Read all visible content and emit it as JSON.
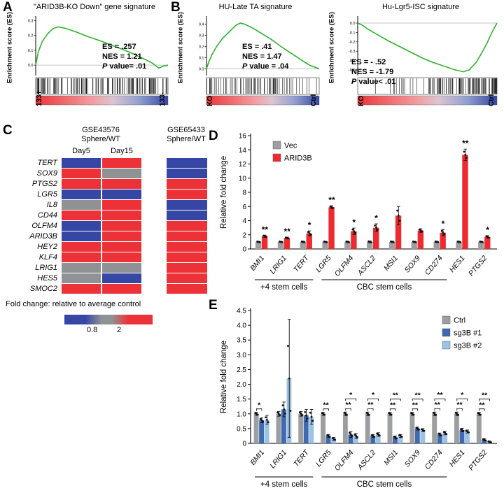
{
  "panels": {
    "a": "A",
    "b": "B",
    "c": "C",
    "d": "D",
    "e": "E"
  },
  "colors": {
    "green": "#2db32d",
    "heat_red": "#ed3237",
    "heat_blue": "#3646a4",
    "heat_gray": "#8f9194"
  },
  "chart_data": [
    {
      "id": "gsea_a",
      "type": "line",
      "title": "\"ARID3B-KO Down\" gene signature",
      "ylabel": "Enrichment score (ES)",
      "stats_lines": [
        "ES =  .257",
        "NES = 1.21"
      ],
      "p_italic": "P",
      "p_rest": " value= .01",
      "left_group": "133+",
      "right_group": "133-",
      "ylim": [
        -0.07,
        0.32
      ],
      "yticks": [
        0.3,
        0.2,
        0.1,
        0.0
      ],
      "curve": [
        [
          0,
          0
        ],
        [
          0.02,
          0.09
        ],
        [
          0.05,
          0.16
        ],
        [
          0.09,
          0.21
        ],
        [
          0.13,
          0.245
        ],
        [
          0.17,
          0.257
        ],
        [
          0.22,
          0.248
        ],
        [
          0.3,
          0.225
        ],
        [
          0.4,
          0.19
        ],
        [
          0.5,
          0.16
        ],
        [
          0.6,
          0.125
        ],
        [
          0.7,
          0.09
        ],
        [
          0.8,
          0.05
        ],
        [
          0.88,
          0.015
        ],
        [
          0.93,
          -0.02
        ],
        [
          0.97,
          -0.005
        ],
        [
          1,
          0
        ]
      ],
      "barcode": {
        "seed": 7,
        "n": 130,
        "bias": 1.05
      }
    },
    {
      "id": "gsea_b1",
      "type": "line",
      "title": "HU-Late TA  signature",
      "ylabel": "Enrichment score (ES)",
      "stats_lines": [
        "ES =  .41",
        "NES = 1.47"
      ],
      "p_italic": "P",
      "p_rest": " value = .04",
      "left_group": "KO",
      "right_group": "Ctrl",
      "ylim": [
        -0.06,
        0.46
      ],
      "yticks": [
        0.4,
        0.3,
        0.2,
        0.1,
        0.0
      ],
      "curve": [
        [
          0,
          0
        ],
        [
          0.02,
          0.06
        ],
        [
          0.05,
          0.13
        ],
        [
          0.09,
          0.2
        ],
        [
          0.14,
          0.27
        ],
        [
          0.2,
          0.33
        ],
        [
          0.26,
          0.39
        ],
        [
          0.3,
          0.41
        ],
        [
          0.34,
          0.4
        ],
        [
          0.42,
          0.36
        ],
        [
          0.5,
          0.31
        ],
        [
          0.58,
          0.26
        ],
        [
          0.66,
          0.2
        ],
        [
          0.75,
          0.14
        ],
        [
          0.84,
          0.08
        ],
        [
          0.92,
          0.03
        ],
        [
          1,
          0
        ]
      ],
      "barcode": {
        "seed": 11,
        "n": 72,
        "bias": 1.35
      }
    },
    {
      "id": "gsea_b2",
      "type": "line",
      "title": "Hu-Lgr5-ISC signature",
      "ylabel": "Enrichment score (ES)",
      "stats_lines": [
        "ES = - .52",
        "NES = -1.79"
      ],
      "p_italic": "P",
      "p_rest": " value< .01",
      "left_group": "KO",
      "right_group": "Ctrl",
      "ylim": [
        -0.56,
        0.06
      ],
      "yticks": [
        0.0,
        -0.1,
        -0.2,
        -0.3,
        -0.4,
        -0.5
      ],
      "curve": [
        [
          0,
          0
        ],
        [
          0.03,
          -0.02
        ],
        [
          0.08,
          -0.07
        ],
        [
          0.15,
          -0.13
        ],
        [
          0.22,
          -0.19
        ],
        [
          0.3,
          -0.25
        ],
        [
          0.38,
          -0.31
        ],
        [
          0.46,
          -0.37
        ],
        [
          0.54,
          -0.42
        ],
        [
          0.62,
          -0.46
        ],
        [
          0.7,
          -0.5
        ],
        [
          0.76,
          -0.52
        ],
        [
          0.8,
          -0.5
        ],
        [
          0.85,
          -0.42
        ],
        [
          0.89,
          -0.32
        ],
        [
          0.93,
          -0.21
        ],
        [
          0.96,
          -0.11
        ],
        [
          1,
          0
        ]
      ],
      "barcode": {
        "seed": 5,
        "n": 95,
        "bias": 0.5
      }
    },
    {
      "id": "heatmap_c",
      "type": "heatmap",
      "header_left": [
        "GSE43576",
        "Sphere/WT"
      ],
      "header_right": [
        "GSE65433",
        "Sphere/WT"
      ],
      "col_labels": [
        "Day5",
        "Day15"
      ],
      "genes": [
        "TERT",
        "SOX9",
        "PTGS2",
        "LGR5",
        "IL8",
        "CD44",
        "OLFM4",
        "ARID3B",
        "HEY2",
        "KLF4",
        "LRIG1",
        "HES5",
        "SMOC2"
      ],
      "cells": [
        [
          "b",
          "r",
          "b"
        ],
        [
          "r",
          "g",
          "b"
        ],
        [
          "r",
          "r",
          "r"
        ],
        [
          "b",
          "b",
          "r"
        ],
        [
          "g",
          "r",
          "b"
        ],
        [
          "r",
          "r",
          "b"
        ],
        [
          "b",
          "r",
          "r"
        ],
        [
          "b",
          "r",
          "r"
        ],
        [
          "r",
          "r",
          "r"
        ],
        [
          "r",
          "r",
          "r"
        ],
        [
          "g",
          "g",
          "r"
        ],
        [
          "g",
          "b",
          "r"
        ],
        [
          "r",
          "r",
          "r"
        ]
      ],
      "caption": "Fold change: relative to average control",
      "scale_min_label": "0.8",
      "scale_max_label": "2"
    },
    {
      "id": "bars_d",
      "type": "bar",
      "ylabel": "Relative fold change",
      "ylim": [
        0,
        16
      ],
      "ystep": 2,
      "categories": [
        "BMI1",
        "LRIG1",
        "TERT",
        "LGR5",
        "OLFM4",
        "ASCL2",
        "MSI1",
        "SOX9",
        "CD274",
        "HES1",
        "PTGS2"
      ],
      "series": [
        {
          "name": "Vec",
          "color": "#9c9ea1",
          "values": [
            1,
            1,
            1,
            1,
            1,
            1,
            1,
            1,
            1,
            1,
            1
          ],
          "errs": [
            0.08,
            0.08,
            0.1,
            0.08,
            0.1,
            0.12,
            0.1,
            0.08,
            0.1,
            0.1,
            0.08
          ]
        },
        {
          "name": "ARID3B",
          "color": "#ed2b2f",
          "values": [
            1.8,
            1.55,
            2.2,
            5.9,
            2.5,
            3.0,
            4.7,
            2.6,
            2.3,
            13.3,
            1.7
          ],
          "errs": [
            0.15,
            0.12,
            0.35,
            0.2,
            0.45,
            0.55,
            1.3,
            0.25,
            0.45,
            0.8,
            0.18
          ]
        }
      ],
      "sig": [
        "**",
        "**",
        "*",
        "**",
        "*",
        "*",
        "",
        "",
        "*",
        "**",
        "*"
      ],
      "groups": [
        {
          "label": "+4 stem cells",
          "from": 0,
          "to": 2
        },
        {
          "label": "CBC stem cells",
          "from": 3,
          "to": 8
        }
      ]
    },
    {
      "id": "bars_e",
      "type": "bar",
      "ylabel": "Relative fold change",
      "ylim": [
        0,
        4.5
      ],
      "ystep": 0.5,
      "categories": [
        "BMI1",
        "LRIG1",
        "TERT",
        "LGR5",
        "OLFM4",
        "ASCL2",
        "MSI1",
        "SOX9",
        "CD274",
        "HES1",
        "PTGS2"
      ],
      "series": [
        {
          "name": "Ctrl",
          "color": "#9c9ea1",
          "values": [
            1,
            1,
            1,
            1,
            1,
            1,
            1,
            1,
            1,
            1,
            1
          ],
          "errs": [
            0.05,
            0.08,
            0.08,
            0.05,
            0.06,
            0.06,
            0.05,
            0.05,
            0.06,
            0.06,
            0.05
          ]
        },
        {
          "name": "sg3B #1",
          "color": "#3f6ab0",
          "values": [
            0.78,
            1.15,
            0.95,
            0.25,
            0.3,
            0.25,
            0.2,
            0.5,
            0.3,
            0.45,
            0.12
          ],
          "errs": [
            0.08,
            0.25,
            0.2,
            0.05,
            0.1,
            0.05,
            0.05,
            0.05,
            0.05,
            0.06,
            0.04
          ]
        },
        {
          "name": "sg3B #2",
          "color": "#9cc2e5",
          "values": [
            0.8,
            2.2,
            0.9,
            0.15,
            0.25,
            0.3,
            0.25,
            0.45,
            0.35,
            0.4,
            0.05
          ],
          "errs": [
            0.15,
            2.0,
            0.25,
            0.05,
            0.08,
            0.06,
            0.05,
            0.05,
            0.06,
            0.05,
            0.03
          ]
        }
      ],
      "sig": [
        [
          "*"
        ],
        [],
        [],
        [
          "**"
        ],
        [
          "**",
          "*"
        ],
        [
          "**",
          "*"
        ],
        [
          "**",
          "**"
        ],
        [
          "**",
          "**"
        ],
        [
          "**",
          "**"
        ],
        [
          "**",
          "*"
        ],
        [
          "**",
          "**"
        ]
      ],
      "groups": [
        {
          "label": "+4 stem cells",
          "from": 0,
          "to": 2
        },
        {
          "label": "CBC stem cells",
          "from": 3,
          "to": 8
        }
      ]
    }
  ]
}
